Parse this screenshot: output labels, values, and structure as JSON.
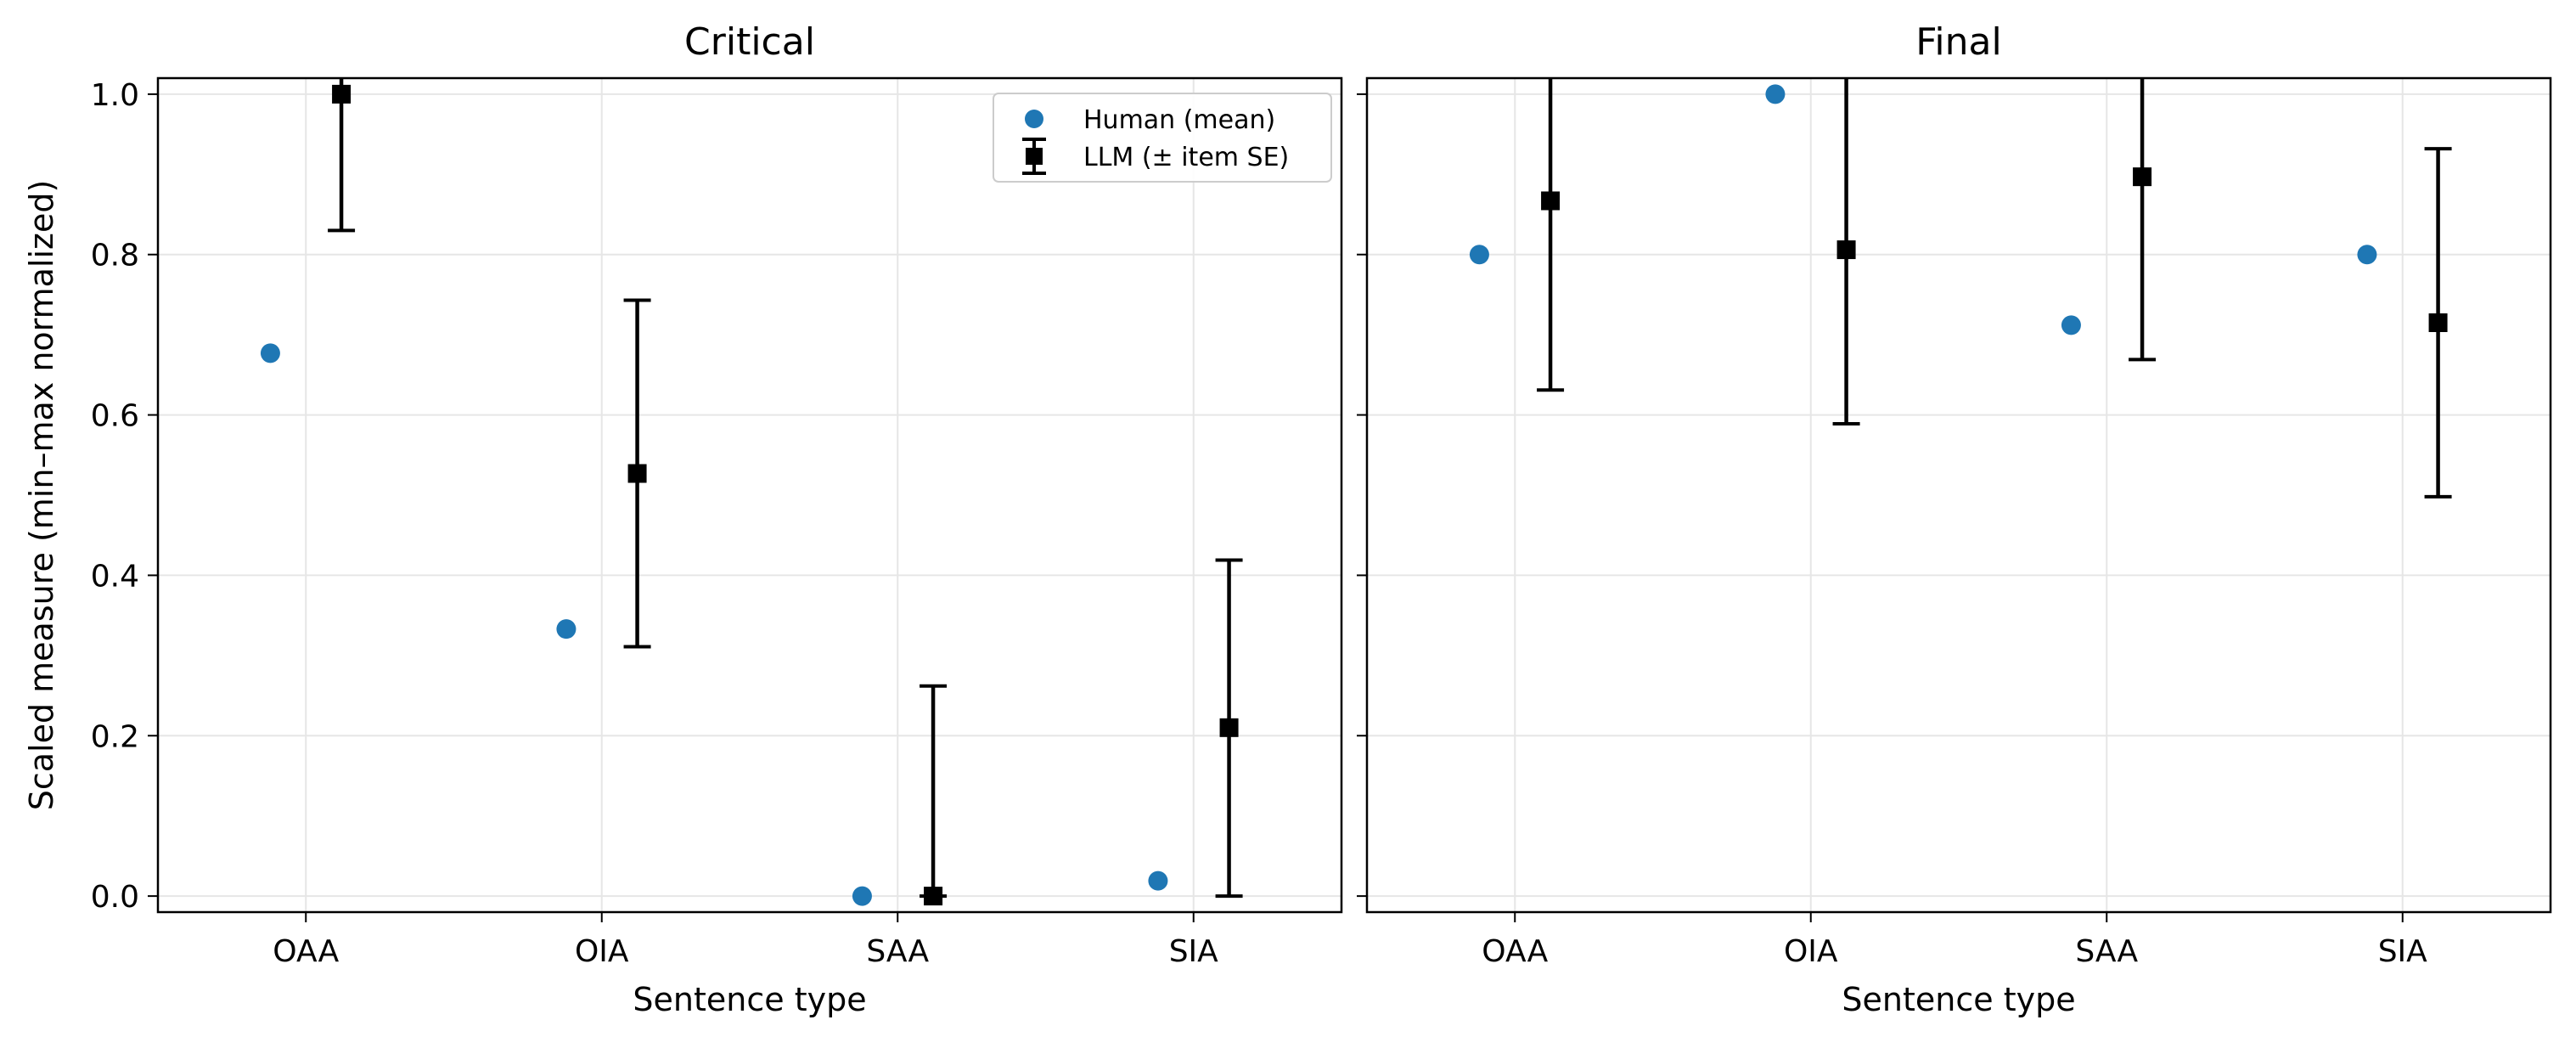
{
  "chart_data": [
    {
      "type": "scatter",
      "title": "Critical",
      "xlabel": "Sentence type",
      "ylabel": "Scaled measure (min–max normalized)",
      "categories": [
        "OAA",
        "OIA",
        "SAA",
        "SIA"
      ],
      "ylim": [
        -0.02,
        1.02
      ],
      "yticks": [
        "0.0",
        "0.2",
        "0.4",
        "0.6",
        "0.8",
        "1.0"
      ],
      "grid": true,
      "legend": {
        "position": "top-right",
        "entries": [
          "Human (mean)",
          "LLM (± item SE)"
        ]
      },
      "series": [
        {
          "name": "Human (mean)",
          "marker": "circle",
          "color": "#1f77b4",
          "values": [
            0.677,
            0.333,
            0.0,
            0.019
          ]
        },
        {
          "name": "LLM (± item SE)",
          "marker": "square",
          "color": "#000000",
          "values": [
            1.0,
            0.527,
            0.0,
            0.21
          ],
          "err_low": [
            0.83,
            0.311,
            0.0,
            0.0
          ],
          "err_high": [
            1.17,
            0.743,
            0.262,
            0.419
          ]
        }
      ]
    },
    {
      "type": "scatter",
      "title": "Final",
      "xlabel": "Sentence type",
      "ylabel": "",
      "categories": [
        "OAA",
        "OIA",
        "SAA",
        "SIA"
      ],
      "ylim": [
        -0.02,
        1.02
      ],
      "yticks": [],
      "grid": true,
      "series": [
        {
          "name": "Human (mean)",
          "marker": "circle",
          "color": "#1f77b4",
          "values": [
            0.8,
            1.0,
            0.712,
            0.8
          ]
        },
        {
          "name": "LLM (± item SE)",
          "marker": "square",
          "color": "#000000",
          "values": [
            0.867,
            0.806,
            0.897,
            0.715
          ],
          "err_low": [
            0.631,
            0.589,
            0.669,
            0.498
          ],
          "err_high": [
            1.103,
            1.023,
            1.125,
            0.932
          ]
        }
      ]
    }
  ]
}
